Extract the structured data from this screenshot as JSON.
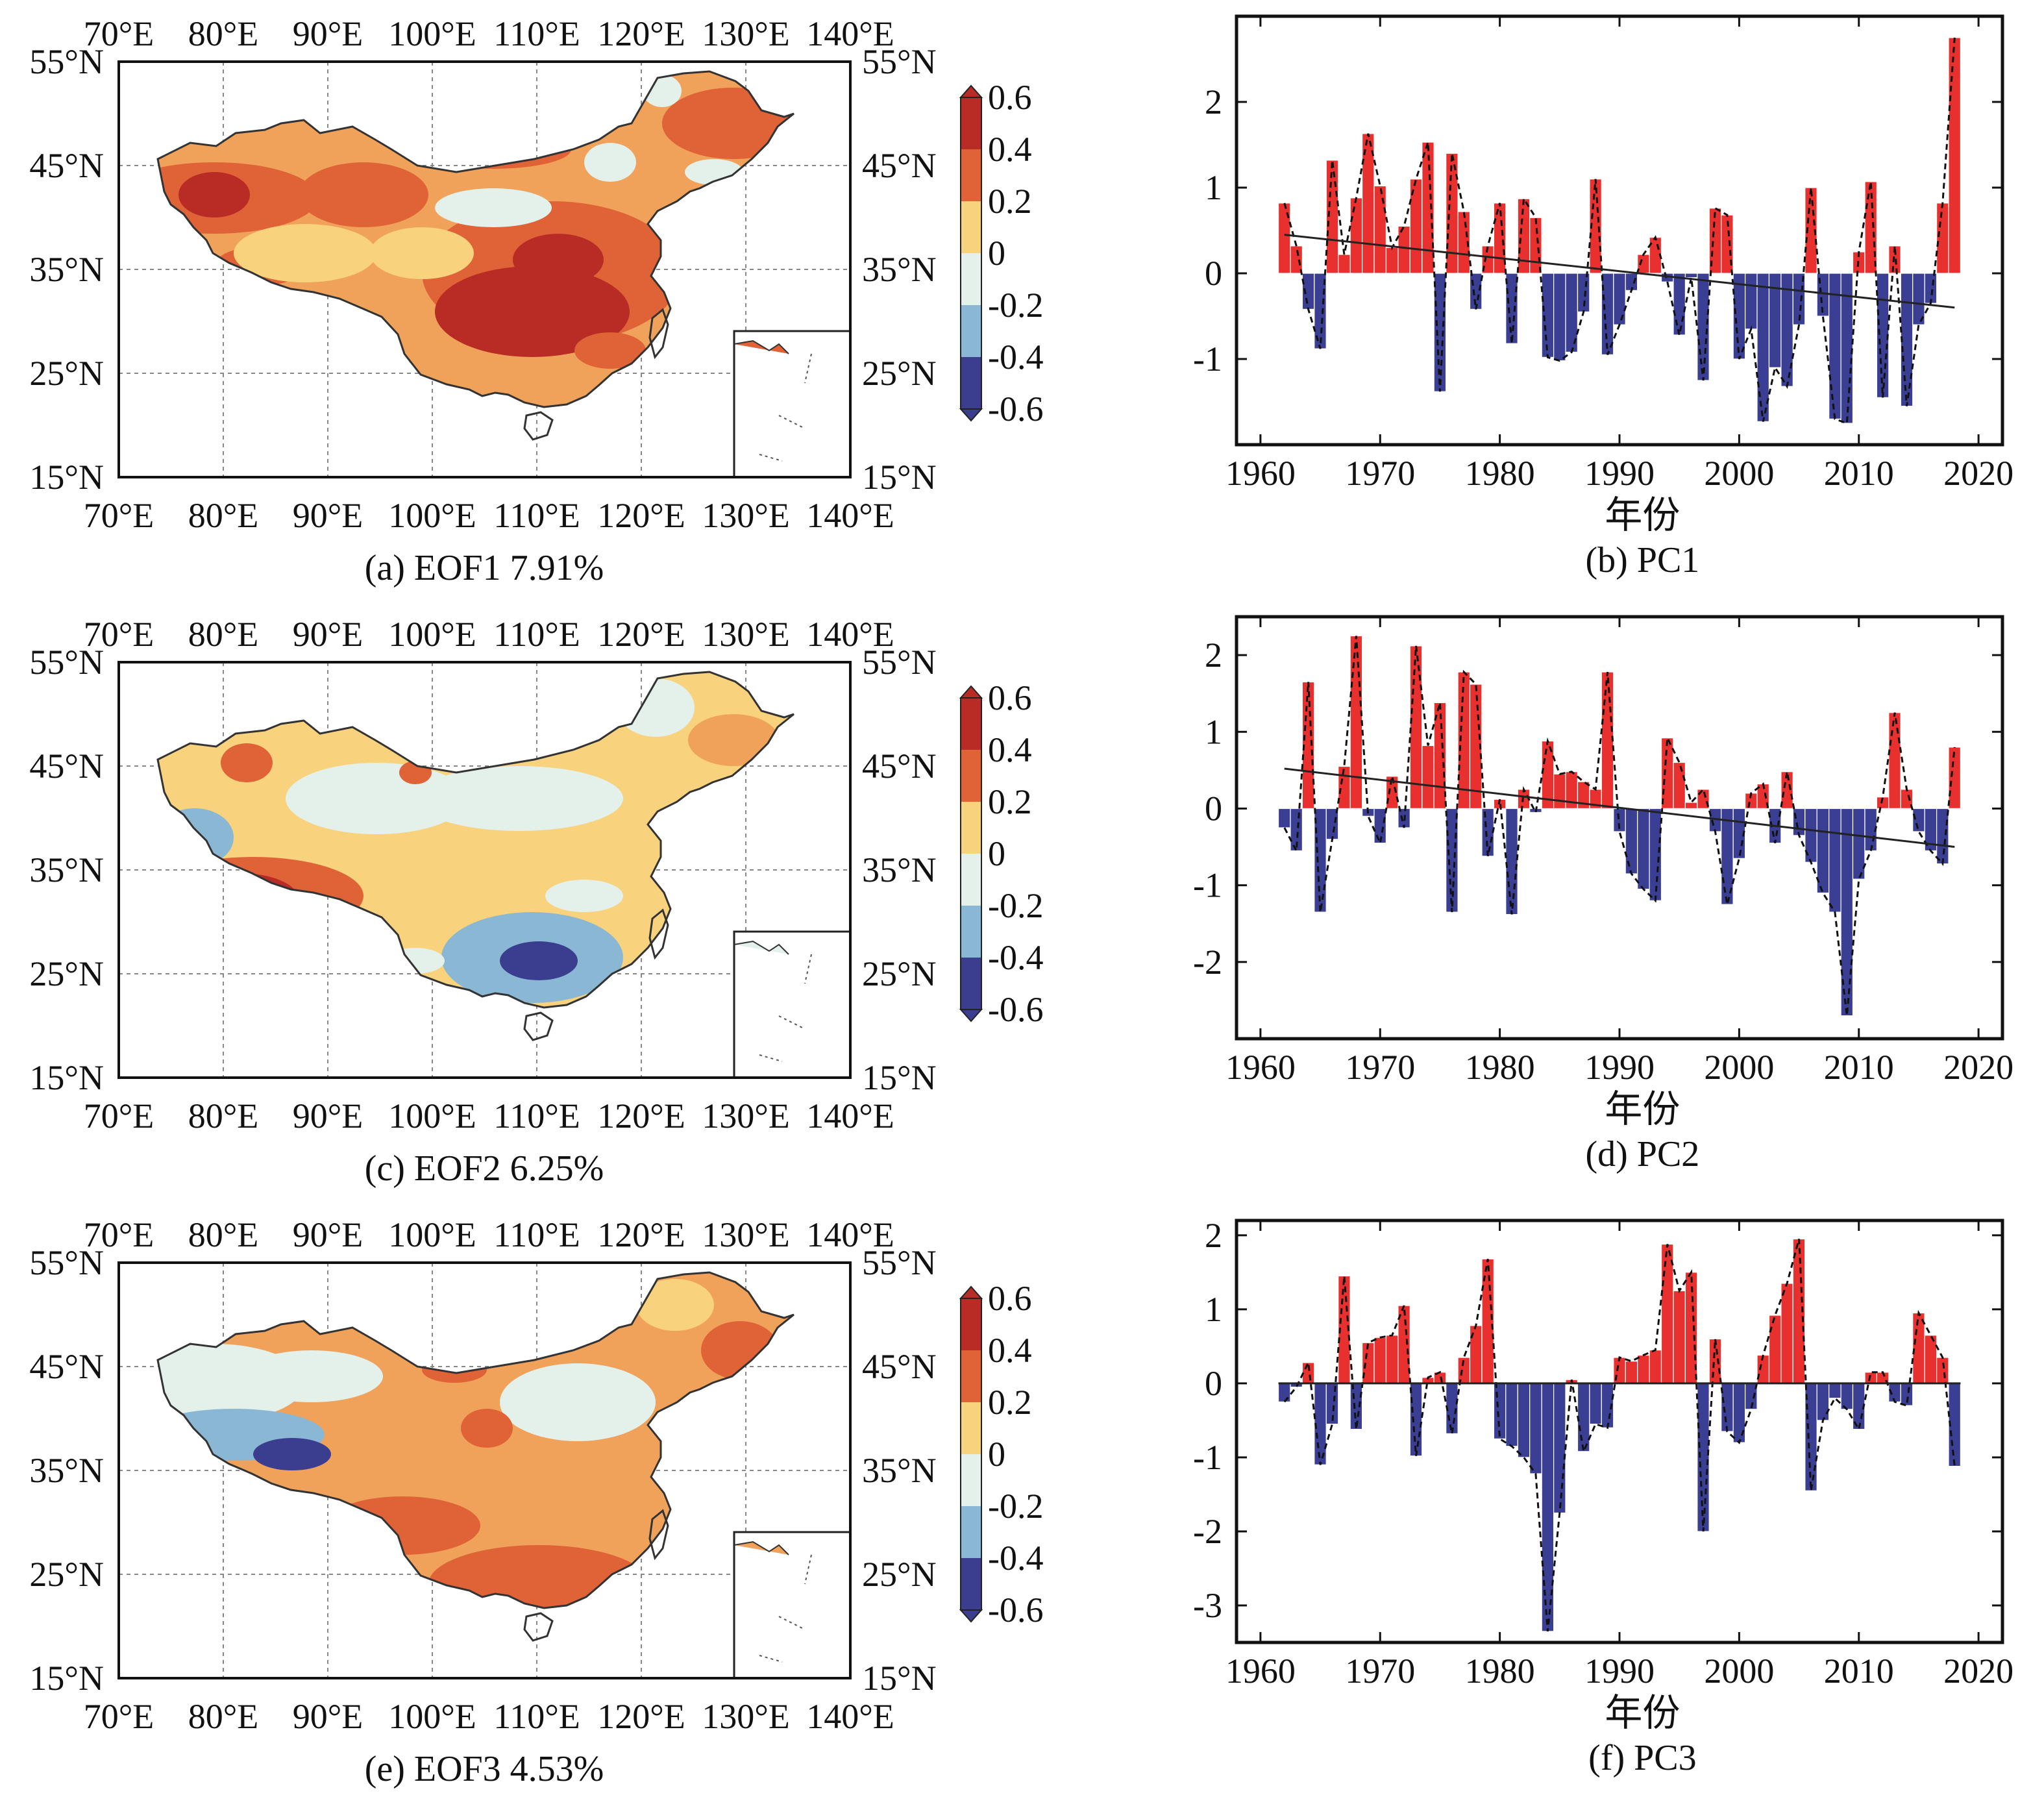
{
  "colors": {
    "positive_bar": "#e8312f",
    "negative_bar": "#3b3f93",
    "dark_red": "#b82c25",
    "red": "#e06237",
    "orange": "#f0a25a",
    "light_yellow": "#f8d27c",
    "very_light": "#e4f0ea",
    "light_blue": "#8ab7d3",
    "blue": "#5d7ab8",
    "dark_blue": "#3b3e8f"
  },
  "maps": {
    "lon_ticks": [
      "70°E",
      "80°E",
      "90°E",
      "100°E",
      "110°E",
      "120°E",
      "130°E",
      "140°E"
    ],
    "lat_ticks": [
      "55°N",
      "45°N",
      "35°N",
      "25°N",
      "15°N"
    ],
    "colorbar_labels": [
      "0.6",
      "0.4",
      "0.2",
      "0",
      "-0.2",
      "-0.4",
      "-0.6"
    ],
    "panels": [
      {
        "caption": "(a) EOF1  7.91%"
      },
      {
        "caption": "(c) EOF2  6.25%"
      },
      {
        "caption": "(e) EOF3  4.53%"
      }
    ]
  },
  "chart_data": [
    {
      "type": "bar",
      "caption": "(b) PC1",
      "xlabel": "年份",
      "x": [
        1962,
        1963,
        1964,
        1965,
        1966,
        1967,
        1968,
        1969,
        1970,
        1971,
        1972,
        1973,
        1974,
        1975,
        1976,
        1977,
        1978,
        1979,
        1980,
        1981,
        1982,
        1983,
        1984,
        1985,
        1986,
        1987,
        1988,
        1989,
        1990,
        1991,
        1992,
        1993,
        1994,
        1995,
        1996,
        1997,
        1998,
        1999,
        2000,
        2001,
        2002,
        2003,
        2004,
        2005,
        2006,
        2007,
        2008,
        2009,
        2010,
        2011,
        2012,
        2013,
        2014,
        2015,
        2016,
        2017,
        2018
      ],
      "values": [
        0.82,
        0.32,
        -0.42,
        -0.88,
        1.32,
        0.22,
        0.88,
        1.63,
        1.02,
        0.3,
        0.55,
        1.1,
        1.53,
        -1.38,
        1.4,
        0.72,
        -0.42,
        0.32,
        0.82,
        -0.82,
        0.87,
        0.65,
        -0.98,
        -1.02,
        -0.92,
        -0.45,
        1.1,
        -0.95,
        -0.6,
        -0.2,
        0.22,
        0.42,
        -0.1,
        -0.72,
        -0.05,
        -1.25,
        0.76,
        0.68,
        -1.0,
        -0.65,
        -1.73,
        -1.1,
        -1.32,
        -0.6,
        1.0,
        -0.5,
        -1.7,
        -1.75,
        0.25,
        1.07,
        -1.45,
        0.32,
        -1.55,
        -0.6,
        -0.35,
        0.82,
        2.75
      ],
      "trend": {
        "x": [
          1962,
          2018
        ],
        "y": [
          0.45,
          -0.4
        ]
      },
      "xlim": [
        1958,
        2022
      ],
      "ylim": [
        -2.0,
        3.0
      ],
      "xticks": [
        1960,
        1970,
        1980,
        1990,
        2000,
        2010,
        2020
      ],
      "yticks": [
        -1,
        0,
        1,
        2
      ]
    },
    {
      "type": "bar",
      "caption": "(d) PC2",
      "xlabel": "年份",
      "x": [
        1962,
        1963,
        1964,
        1965,
        1966,
        1967,
        1968,
        1969,
        1970,
        1971,
        1972,
        1973,
        1974,
        1975,
        1976,
        1977,
        1978,
        1979,
        1980,
        1981,
        1982,
        1983,
        1984,
        1985,
        1986,
        1987,
        1988,
        1989,
        1990,
        1991,
        1992,
        1993,
        1994,
        1995,
        1996,
        1997,
        1998,
        1999,
        2000,
        2001,
        2002,
        2003,
        2004,
        2005,
        2006,
        2007,
        2008,
        2009,
        2010,
        2011,
        2012,
        2013,
        2014,
        2015,
        2016,
        2017,
        2018
      ],
      "values": [
        -0.25,
        -0.55,
        1.65,
        -1.35,
        -0.4,
        0.55,
        2.25,
        -0.1,
        -0.45,
        0.42,
        -0.25,
        2.12,
        0.82,
        1.38,
        -1.35,
        1.78,
        1.62,
        -0.62,
        0.12,
        -1.38,
        0.25,
        -0.05,
        0.88,
        0.45,
        0.48,
        0.35,
        0.25,
        1.78,
        -0.3,
        -0.85,
        -1.05,
        -1.2,
        0.92,
        0.6,
        0.08,
        0.25,
        -0.3,
        -1.25,
        -0.65,
        0.2,
        0.32,
        -0.45,
        0.48,
        -0.35,
        -0.7,
        -1.1,
        -1.35,
        -2.7,
        -0.92,
        -0.55,
        0.15,
        1.25,
        0.25,
        -0.3,
        -0.55,
        -0.72,
        0.8
      ],
      "trend": {
        "x": [
          1962,
          2018
        ],
        "y": [
          0.52,
          -0.5
        ]
      },
      "xlim": [
        1958,
        2022
      ],
      "ylim": [
        -3.0,
        2.5
      ],
      "xticks": [
        1960,
        1970,
        1980,
        1990,
        2000,
        2010,
        2020
      ],
      "yticks": [
        -2,
        -1,
        0,
        1,
        2
      ]
    },
    {
      "type": "bar",
      "caption": "(f) PC3",
      "xlabel": "年份",
      "x": [
        1962,
        1963,
        1964,
        1965,
        1966,
        1967,
        1968,
        1969,
        1970,
        1971,
        1972,
        1973,
        1974,
        1975,
        1976,
        1977,
        1978,
        1979,
        1980,
        1981,
        1982,
        1983,
        1984,
        1985,
        1986,
        1987,
        1988,
        1989,
        1990,
        1991,
        1992,
        1993,
        1994,
        1995,
        1996,
        1997,
        1998,
        1999,
        2000,
        2001,
        2002,
        2003,
        2004,
        2005,
        2006,
        2007,
        2008,
        2009,
        2010,
        2011,
        2012,
        2013,
        2014,
        2015,
        2016,
        2017,
        2018
      ],
      "values": [
        -0.25,
        -0.05,
        0.28,
        -1.1,
        -0.55,
        1.45,
        -0.62,
        0.55,
        0.62,
        0.65,
        1.05,
        -0.98,
        0.08,
        0.15,
        -0.68,
        0.35,
        0.78,
        1.68,
        -0.75,
        -0.85,
        -1.0,
        -1.22,
        -3.35,
        -1.75,
        0.05,
        -0.92,
        -0.55,
        -0.6,
        0.35,
        0.3,
        0.38,
        0.45,
        1.88,
        1.25,
        1.5,
        -2.0,
        0.6,
        -0.65,
        -0.8,
        -0.35,
        0.38,
        0.92,
        1.35,
        1.95,
        -1.45,
        -0.5,
        -0.2,
        -0.35,
        -0.62,
        0.15,
        0.15,
        -0.25,
        -0.3,
        0.95,
        0.65,
        0.35,
        -1.12
      ],
      "zero_line": true,
      "xlim": [
        1958,
        2022
      ],
      "ylim": [
        -3.5,
        2.2
      ],
      "xticks": [
        1960,
        1970,
        1980,
        1990,
        2000,
        2010,
        2020
      ],
      "yticks": [
        -3,
        -2,
        -1,
        0,
        1,
        2
      ]
    }
  ]
}
